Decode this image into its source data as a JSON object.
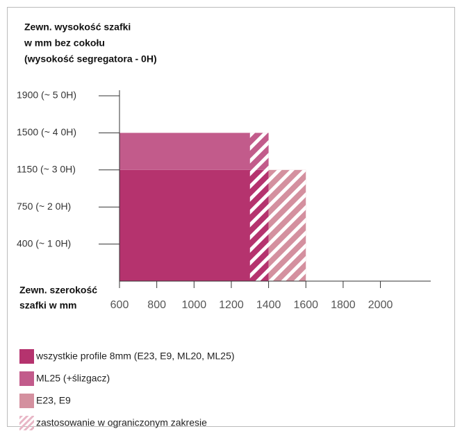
{
  "chart_data": {
    "type": "range",
    "title": [
      "Zewn. wysokość szafki",
      "w mm bez cokołu",
      "(wysokość segregatora - 0H)"
    ],
    "xlabel": [
      "Zewn. szerokość",
      "szafki w mm"
    ],
    "xlim": [
      600,
      2270
    ],
    "xticks": [
      600,
      800,
      1000,
      1200,
      1400,
      1600,
      1800,
      2000
    ],
    "ylim": [
      0,
      5.15
    ],
    "yticks": [
      {
        "value": 1,
        "label": "400 (~ 1 0H)"
      },
      {
        "value": 2,
        "label": "750 (~ 2 0H)"
      },
      {
        "value": 3,
        "label": "1150 (~ 3 0H)"
      },
      {
        "value": 4,
        "label": "1500 (~ 4 0H)"
      },
      {
        "value": 5,
        "label": "1900 (~  5 0H)"
      }
    ],
    "series": [
      {
        "name": "wszystkie profile 8mm (E23, E9, ML20, ML25)",
        "color": "#b5336e",
        "xrange": [
          600,
          1400
        ],
        "yrange": [
          0,
          3
        ]
      },
      {
        "name": "ML25 (+ślizgacz)",
        "color": "#c25b8b",
        "xrange": [
          600,
          1400
        ],
        "yrange": [
          3,
          4
        ]
      },
      {
        "name": "E23, E9",
        "color": "#d4909f",
        "xrange": [
          1400,
          1600
        ],
        "yrange": [
          0,
          3
        ]
      },
      {
        "name": "zastosowanie w ograniczonym zakresie",
        "color": "#e8b6c6",
        "pattern": "hatch",
        "regions": [
          {
            "xrange": [
              1300,
              1400
            ],
            "yrange": [
              0,
              4
            ]
          },
          {
            "xrange": [
              1400,
              1600
            ],
            "yrange": [
              0,
              3
            ]
          }
        ]
      }
    ]
  }
}
